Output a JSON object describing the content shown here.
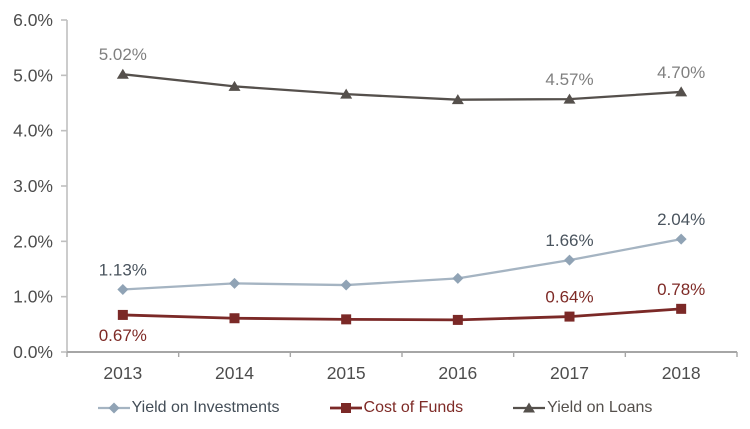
{
  "chart_data": {
    "type": "line",
    "title": "",
    "categories": [
      "2013",
      "2014",
      "2015",
      "2016",
      "2017",
      "2018"
    ],
    "y_axis": {
      "min": 0,
      "max": 6,
      "step": 1,
      "tick_labels": [
        "0.0%",
        "1.0%",
        "2.0%",
        "3.0%",
        "4.0%",
        "5.0%",
        "6.0%"
      ],
      "grid": false
    },
    "series": [
      {
        "name": "Yield on Investments",
        "marker": "diamond",
        "line_color": "#a5b4c2",
        "marker_color": "#90a3b5",
        "label_color": "#4a545e",
        "legend_color": "#434d57",
        "values": [
          1.13,
          1.24,
          1.21,
          1.33,
          1.66,
          2.04
        ],
        "data_labels": [
          {
            "index": 0,
            "text": "1.13%",
            "position": "above"
          },
          {
            "index": 4,
            "text": "1.66%",
            "position": "above"
          },
          {
            "index": 5,
            "text": "2.04%",
            "position": "above"
          }
        ]
      },
      {
        "name": "Cost of Funds",
        "marker": "square",
        "line_color": "#7b2927",
        "marker_color": "#7b2927",
        "label_color": "#7e2a26",
        "legend_color": "#7e2a26",
        "values": [
          0.67,
          0.61,
          0.59,
          0.58,
          0.64,
          0.78
        ],
        "data_labels": [
          {
            "index": 0,
            "text": "0.67%",
            "position": "below"
          },
          {
            "index": 4,
            "text": "0.64%",
            "position": "above"
          },
          {
            "index": 5,
            "text": "0.78%",
            "position": "above"
          }
        ]
      },
      {
        "name": "Yield on Loans",
        "marker": "triangle",
        "line_color": "#55504c",
        "marker_color": "#55504c",
        "label_color": "#7f7f7f",
        "legend_color": "#55504c",
        "values": [
          5.02,
          4.8,
          4.66,
          4.56,
          4.57,
          4.7
        ],
        "data_labels": [
          {
            "index": 0,
            "text": "5.02%",
            "position": "above"
          },
          {
            "index": 4,
            "text": "4.57%",
            "position": "above"
          },
          {
            "index": 5,
            "text": "4.70%",
            "position": "above"
          }
        ]
      }
    ],
    "legend": {
      "position": "bottom",
      "entries": [
        "Yield on Investments",
        "Cost of Funds",
        "Yield on Loans"
      ]
    },
    "colors": {
      "axis_x": "#a6a6a6",
      "axis_y": "#bfbfbf",
      "tick_label": "#4d4d4d",
      "background": "#ffffff"
    }
  }
}
